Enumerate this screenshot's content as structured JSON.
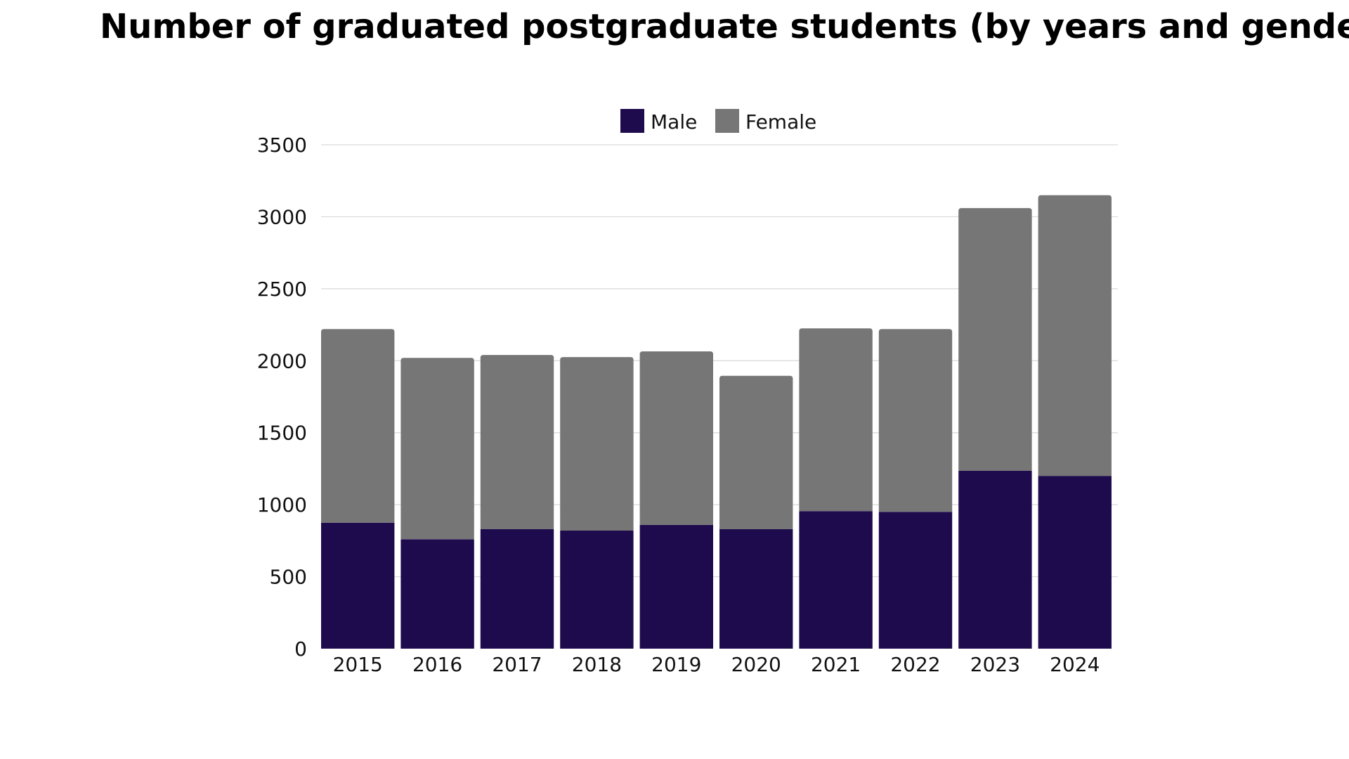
{
  "chart_data": {
    "type": "bar",
    "stacked": true,
    "title": "Number of graduated postgraduate students (by years and gender)",
    "xlabel": "",
    "ylabel": "",
    "categories": [
      "2015",
      "2016",
      "2017",
      "2018",
      "2019",
      "2020",
      "2021",
      "2022",
      "2023",
      "2024"
    ],
    "series": [
      {
        "name": "Male",
        "color": "#1e0b4e",
        "values": [
          875,
          760,
          830,
          820,
          860,
          830,
          955,
          950,
          1235,
          1200
        ]
      },
      {
        "name": "Female",
        "color": "#767676",
        "values": [
          1345,
          1260,
          1210,
          1205,
          1205,
          1065,
          1270,
          1270,
          1825,
          1950
        ]
      }
    ],
    "ylim": [
      0,
      3500
    ],
    "yticks": [
      0,
      500,
      1000,
      1500,
      2000,
      2500,
      3000,
      3500
    ],
    "grid": true,
    "legend_position": "top-center"
  }
}
